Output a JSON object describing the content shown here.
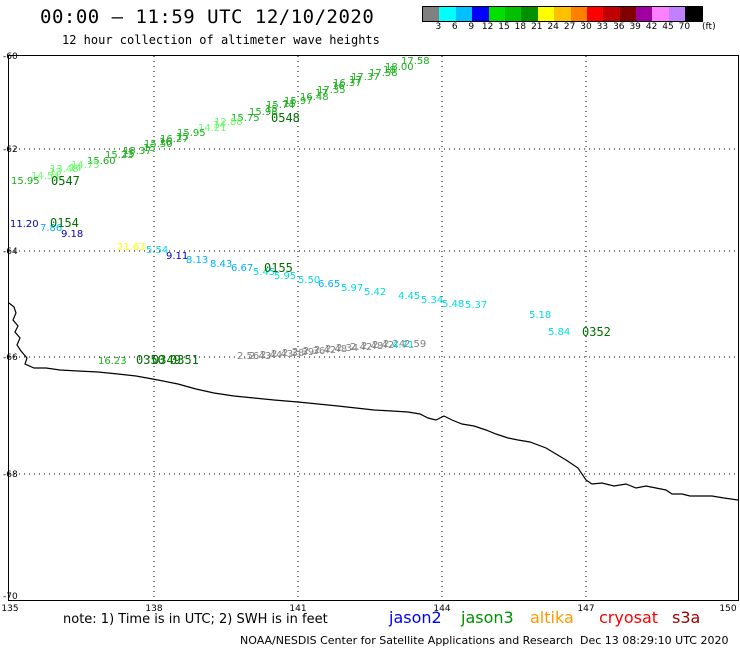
{
  "header": {
    "title": "00:00 – 11:59 UTC 12/10/2020",
    "subtitle": "12 hour collection of altimeter wave heights"
  },
  "scale": {
    "colors": [
      "#808080",
      "#00ffff",
      "#00c0ff",
      "#0000ff",
      "#00e000",
      "#00c000",
      "#009000",
      "#ffff00",
      "#ffc000",
      "#ff8000",
      "#ff0000",
      "#c00000",
      "#800000",
      "#a000a0",
      "#ff80ff",
      "#c080ff",
      "#000000"
    ],
    "labels": [
      "3",
      "6",
      "9",
      "12",
      "15",
      "18",
      "21",
      "24",
      "27",
      "30",
      "33",
      "36",
      "39",
      "42",
      "45",
      "70",
      "(ft)"
    ]
  },
  "axes": {
    "lat_labels": [
      "-60",
      "-62",
      "-64",
      "-66",
      "-68",
      "-70"
    ],
    "lon_labels": [
      "135",
      "138",
      "141",
      "144",
      "147",
      "150"
    ]
  },
  "wave_points": [
    {
      "v": "17.58",
      "c": "#1bb01b"
    },
    {
      "v": "18.00",
      "c": "#1bb01b"
    },
    {
      "v": "18",
      "c": "#1bb01b"
    },
    {
      "v": "17.58",
      "c": "#1bb01b"
    },
    {
      "v": "17.37",
      "c": "#1bb01b"
    },
    {
      "v": "17",
      "c": "#1bb01b"
    },
    {
      "v": "16.37",
      "c": "#1bb01b"
    },
    {
      "v": "16",
      "c": "#1bb01b"
    },
    {
      "v": "17.35",
      "c": "#1bb01b"
    },
    {
      "v": "17",
      "c": "#1bb01b"
    },
    {
      "v": "16.48",
      "c": "#1bb01b"
    },
    {
      "v": "15.97",
      "c": "#1bb01b"
    },
    {
      "v": "15",
      "c": "#1bb01b"
    },
    {
      "v": "15.74",
      "c": "#1bb01b"
    },
    {
      "v": "15",
      "c": "#1bb01b"
    },
    {
      "v": "15.98",
      "c": "#1bb01b"
    },
    {
      "v": "15.75",
      "c": "#1bb01b"
    },
    {
      "v": "12.88",
      "c": "#66ff66"
    },
    {
      "v": "14",
      "c": "#66ff66"
    },
    {
      "v": "14.21",
      "c": "#66ff66"
    },
    {
      "v": "15.95",
      "c": "#1bb01b"
    },
    {
      "v": "15",
      "c": "#1bb01b"
    },
    {
      "v": "16.27",
      "c": "#1bb01b"
    },
    {
      "v": "16",
      "c": "#1bb01b"
    },
    {
      "v": "15.50",
      "c": "#1bb01b"
    },
    {
      "v": "15",
      "c": "#1bb01b"
    },
    {
      "v": "15.37",
      "c": "#1bb01b"
    },
    {
      "v": "15",
      "c": "#1bb01b"
    },
    {
      "v": "15.23",
      "c": "#1bb01b"
    },
    {
      "v": "15.60",
      "c": "#1bb01b"
    },
    {
      "v": "14.75",
      "c": "#66ff66"
    },
    {
      "v": "14",
      "c": "#66ff66"
    },
    {
      "v": "13.48",
      "c": "#66ff66"
    },
    {
      "v": "13",
      "c": "#66ff66"
    },
    {
      "v": "14.54",
      "c": "#66ff66"
    },
    {
      "v": "15.95",
      "c": "#1bb01b"
    },
    {
      "v": "11.20",
      "c": "#0000c0"
    },
    {
      "v": "7.86",
      "c": "#00b0ff"
    },
    {
      "v": "9.18",
      "c": "#0000c0"
    },
    {
      "v": "21.63",
      "c": "#ffff00"
    },
    {
      "v": "5.54",
      "c": "#00dddd"
    },
    {
      "v": "9.11",
      "c": "#0000c0"
    },
    {
      "v": "8.13",
      "c": "#00b0ff"
    },
    {
      "v": "8.43",
      "c": "#00b0ff"
    },
    {
      "v": "6.67",
      "c": "#00b0ff"
    },
    {
      "v": "5.45",
      "c": "#00dddd"
    },
    {
      "v": "5.95",
      "c": "#00dddd"
    },
    {
      "v": "5.50",
      "c": "#00dddd"
    },
    {
      "v": "6.65",
      "c": "#00b0ff"
    },
    {
      "v": "5.97",
      "c": "#00dddd"
    },
    {
      "v": "5.42",
      "c": "#00dddd"
    },
    {
      "v": "4.45",
      "c": "#00dddd"
    },
    {
      "v": "5.34",
      "c": "#00dddd"
    },
    {
      "v": "5.48",
      "c": "#00dddd"
    },
    {
      "v": "5.37",
      "c": "#00dddd"
    },
    {
      "v": "5.18",
      "c": "#00dddd"
    },
    {
      "v": "5.84",
      "c": "#00dddd"
    },
    {
      "v": "16.23",
      "c": "#1bb01b"
    },
    {
      "v": "2.56",
      "c": "#808080"
    },
    {
      "v": "2.43",
      "c": "#808080"
    },
    {
      "v": "2.44",
      "c": "#808080"
    },
    {
      "v": "2.43",
      "c": "#808080"
    },
    {
      "v": "2.38",
      "c": "#808080"
    },
    {
      "v": "2.39",
      "c": "#808080"
    },
    {
      "v": "2.36",
      "c": "#808080"
    },
    {
      "v": "2.42",
      "c": "#808080"
    },
    {
      "v": "2.48",
      "c": "#808080"
    },
    {
      "v": "2.34",
      "c": "#808080"
    },
    {
      "v": "2.42",
      "c": "#808080"
    },
    {
      "v": "2.48",
      "c": "#808080"
    },
    {
      "v": "2.42",
      "c": "#808080"
    },
    {
      "v": "2.24",
      "c": "#808080"
    },
    {
      "v": "4.71",
      "c": "#00dddd"
    },
    {
      "v": "2.59",
      "c": "#808080"
    }
  ],
  "time_labels": [
    "0548",
    "0547",
    "0154",
    "0155",
    "0352",
    "0350",
    "0349",
    "0351"
  ],
  "footer": {
    "note": "note: 1) Time is in UTC; 2) SWH is in feet",
    "satellites": [
      {
        "name": "jason2",
        "color": "#0000ff"
      },
      {
        "name": "jason3",
        "color": "#009000"
      },
      {
        "name": "altika",
        "color": "#ff9900"
      },
      {
        "name": "cryosat",
        "color": "#ff0000"
      },
      {
        "name": "s3a",
        "color": "#a00000"
      }
    ],
    "credit": "NOAA/NESDIS Center for Satellite Applications and Research",
    "timestamp": "Dec 13 08:29:10 UTC 2020"
  }
}
